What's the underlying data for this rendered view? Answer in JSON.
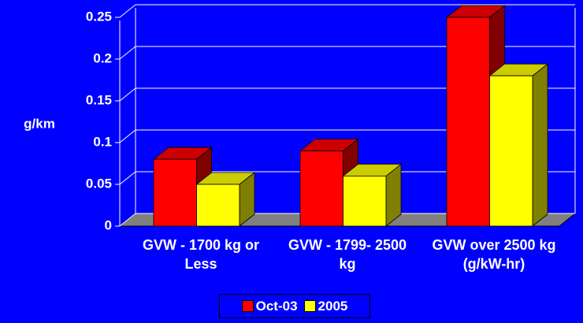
{
  "chart_data": {
    "type": "bar3d",
    "y_label": "g/km",
    "categories": [
      "GVW - 1700 kg or Less",
      "GVW - 1799- 2500 kg",
      "GVW over 2500 kg (g/kW-hr)"
    ],
    "series": [
      {
        "name": "Oct-03",
        "color": "#ff0000",
        "values": [
          0.08,
          0.09,
          0.25
        ]
      },
      {
        "name": "2005",
        "color": "#ffff00",
        "values": [
          0.05,
          0.06,
          0.18
        ]
      }
    ],
    "ylim": [
      0,
      0.25
    ],
    "yticks": [
      0,
      0.05,
      0.1,
      0.15,
      0.2,
      0.25
    ],
    "grid": true,
    "legend": "bottom"
  }
}
